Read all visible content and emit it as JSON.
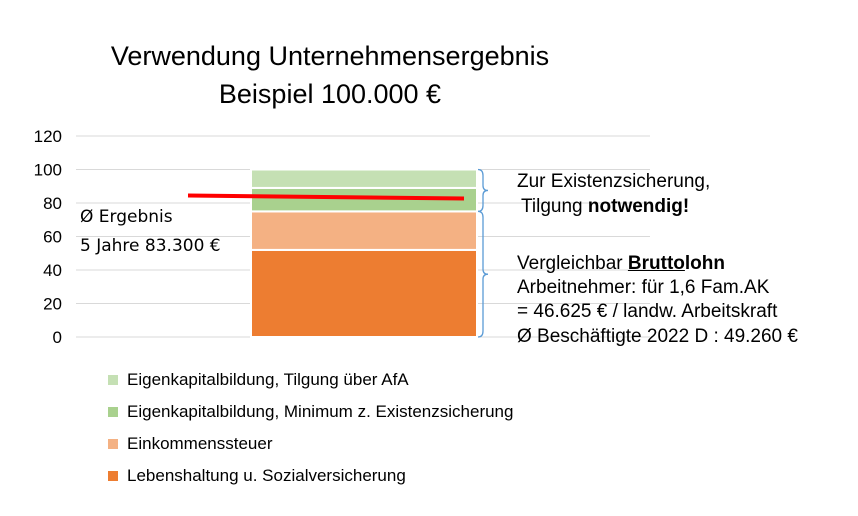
{
  "title": {
    "line1": "Verwendung Unternehmensergebnis",
    "line2": "Beispiel 100.000 €"
  },
  "chart_data": {
    "type": "bar",
    "stacked": true,
    "ylim": [
      0,
      120
    ],
    "yticks": [
      "0",
      "20",
      "40",
      "60",
      "80",
      "100",
      "120"
    ],
    "grid": true,
    "legend_position": "bottom-left",
    "series": [
      {
        "name": "Lebenshaltung u. Sozialversicherung",
        "values": [
          52
        ],
        "color": "#ed7d31"
      },
      {
        "name": "Einkommenssteuer",
        "values": [
          23
        ],
        "color": "#f4b183"
      },
      {
        "name": "Eigenkapitalbildung, Minimum z. Existenzsicherung",
        "values": [
          14
        ],
        "color": "#a9d18e"
      },
      {
        "name": "Eigenkapitalbildung, Tilgung über AfA",
        "values": [
          11
        ],
        "color": "#c5e0b4"
      }
    ],
    "reference_line": {
      "value": 83.3,
      "color": "#ff0000"
    }
  },
  "annotations": {
    "avg_line1": "Ø Ergebnis",
    "avg_line2": "5 Jahre 83.300 €",
    "exist_line1": "Zur Existenzsicherung,",
    "exist_line2_prefix": "Tilgung",
    "exist_line2_bold": "notwendig!",
    "brutto_prefix": "Vergleichbar",
    "brutto_underlined": "Brutto",
    "brutto_bold_suffix": "lohn",
    "brutto_line2": "Arbeitnehmer: für 1,6 Fam.AK",
    "brutto_line3": "= 46.625 € / landw. Arbeitskraft",
    "brutto_line4": "Ø Beschäftigte 2022 D : 49.260 €"
  },
  "colors": {
    "grid": "#d9d9d9",
    "brace": "#5b9bd5"
  }
}
